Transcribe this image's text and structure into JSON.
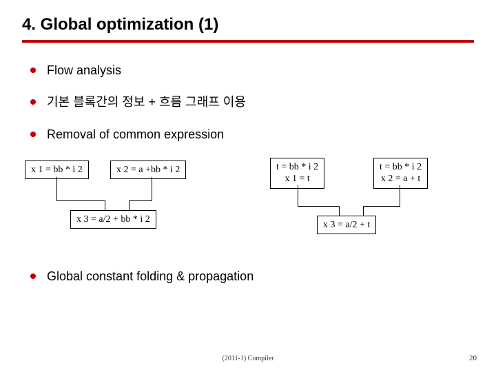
{
  "title": "4. Global optimization (1)",
  "bullets": {
    "b1": "Flow analysis",
    "b2": "기본 블록간의 정보 + 흐름 그래프 이용",
    "b3": "Removal of common expression",
    "b4": "Global constant folding & propagation"
  },
  "diagram": {
    "left": {
      "n1": "x 1 = bb * i 2",
      "n2": "x 2 = a +bb * i 2",
      "n3": "x 3 = a/2 + bb * i 2"
    },
    "right": {
      "n1": "t = bb * i 2\nx 1 = t",
      "n2": "t = bb * i 2\nx 2 = a + t",
      "n3": "x 3 = a/2 + t"
    }
  },
  "footer": "(2011-1) Compiler",
  "page": "20",
  "colors": {
    "accent": "#c00000",
    "text": "#000000",
    "bg": "#ffffff"
  }
}
